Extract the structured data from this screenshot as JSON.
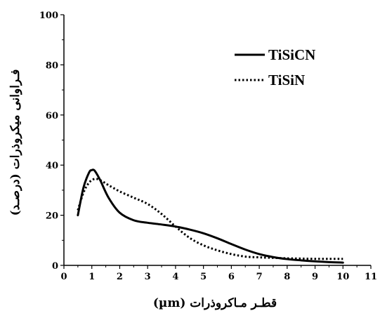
{
  "chart_data": {
    "type": "line",
    "xlabel": "قطـر مـاكروذرات (µm)",
    "ylabel": "فـراوانی میكروذرات (درصـد)",
    "xlim": [
      0,
      11
    ],
    "ylim": [
      0,
      100
    ],
    "x_ticks": [
      "0",
      "1",
      "2",
      "3",
      "4",
      "5",
      "6",
      "7",
      "8",
      "9",
      "10",
      "11"
    ],
    "y_ticks": [
      "0",
      "20",
      "40",
      "60",
      "80",
      "100"
    ],
    "grid": false,
    "legend_position": "top-right",
    "series": [
      {
        "name": "TiSiCN",
        "style": "solid",
        "x": [
          0.5,
          0.7,
          0.9,
          1.0,
          1.1,
          1.3,
          1.6,
          2.0,
          2.5,
          3.0,
          3.5,
          4.0,
          4.5,
          5.0,
          5.5,
          6.0,
          6.5,
          7.0,
          7.5,
          8.0,
          8.5,
          9.0,
          9.5,
          10.0
        ],
        "values": [
          20,
          31,
          37,
          38,
          37.8,
          34,
          27,
          21,
          18,
          17,
          16.3,
          15.5,
          14.3,
          12.8,
          10.8,
          8.5,
          6.3,
          4.5,
          3.3,
          2.5,
          2.0,
          1.6,
          1.3,
          1.1
        ]
      },
      {
        "name": "TiSiN",
        "style": "dotted",
        "x": [
          0.5,
          0.7,
          0.9,
          1.1,
          1.3,
          1.6,
          2.0,
          2.5,
          3.0,
          3.5,
          4.0,
          4.5,
          5.0,
          5.5,
          6.0,
          6.5,
          7.0,
          7.5,
          8.0,
          8.5,
          9.0,
          9.5,
          10.0
        ],
        "values": [
          22,
          29,
          33,
          34.5,
          34,
          32,
          29.5,
          27,
          24.5,
          20.5,
          15.5,
          11,
          8,
          6,
          4.5,
          3.5,
          3.2,
          3.0,
          2.8,
          2.7,
          2.6,
          2.6,
          2.6
        ]
      }
    ]
  }
}
